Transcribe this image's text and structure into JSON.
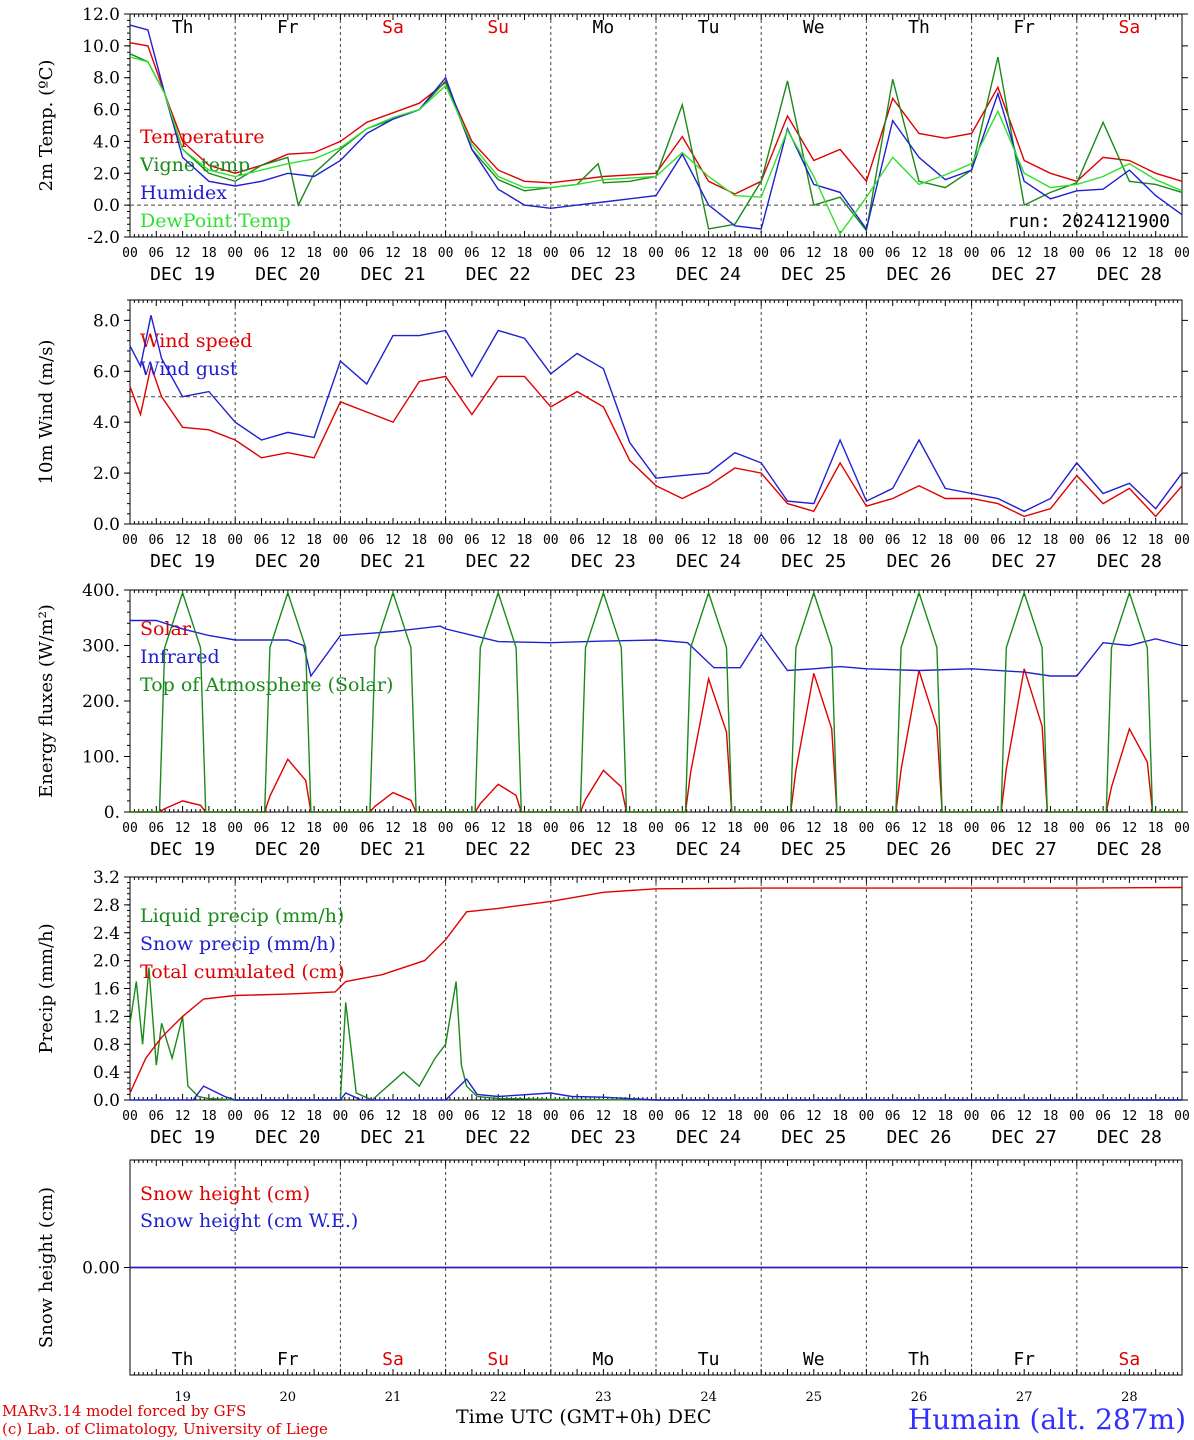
{
  "days": {
    "weekdays": [
      "Th",
      "Fr",
      "Sa",
      "Su",
      "Mo",
      "Tu",
      "We",
      "Th",
      "Fr",
      "Sa"
    ],
    "weekday_colors": [
      "#000000",
      "#000000",
      "#e00000",
      "#e00000",
      "#000000",
      "#000000",
      "#000000",
      "#000000",
      "#000000",
      "#e00000"
    ],
    "dates": [
      "DEC 19",
      "DEC 20",
      "DEC 21",
      "DEC 22",
      "DEC 23",
      "DEC 24",
      "DEC 25",
      "DEC 26",
      "DEC 27",
      "DEC 28"
    ],
    "day_numbers": [
      "19",
      "20",
      "21",
      "22",
      "23",
      "24",
      "25",
      "26",
      "27",
      "28"
    ],
    "hour_ticks": [
      "00",
      "06",
      "12",
      "18"
    ]
  },
  "footer": {
    "model": "MARv3.14 model forced by GFS",
    "credit": "(c) Lab. of Climatology, University of Liege",
    "x_caption": "Time UTC (GMT+0h) DEC",
    "station": "Humain (alt. 287m)"
  },
  "chart_data": [
    {
      "type": "line",
      "ylabel": "2m Temp. (ºC)",
      "ylim": [
        -2,
        12
      ],
      "yticks": [
        "-2.0",
        "0.0",
        "2.0",
        "4.0",
        "6.0",
        "8.0",
        "10.0",
        "12.0"
      ],
      "yvalues": [
        -2,
        0,
        2,
        4,
        6,
        8,
        10,
        12
      ],
      "dashed_y": 0,
      "annotation": "run: 2024121900",
      "x_unit": "days since DEC 19 00h",
      "series": [
        {
          "name": "Temperature",
          "color": "#e00000",
          "x": [
            0,
            0.17,
            0.33,
            0.5,
            0.75,
            1,
            1.25,
            1.5,
            1.75,
            2,
            2.25,
            2.5,
            2.75,
            3,
            3.25,
            3.5,
            3.75,
            4,
            4.25,
            4.5,
            4.75,
            5,
            5.25,
            5.5,
            5.75,
            6,
            6.25,
            6.5,
            6.75,
            7,
            7.25,
            7.5,
            7.75,
            8,
            8.25,
            8.5,
            8.75,
            9,
            9.25,
            9.5,
            9.75,
            10
          ],
          "y": [
            10.2,
            10,
            7,
            4,
            2.5,
            2,
            2.5,
            3.2,
            3.3,
            4,
            5.2,
            5.8,
            6.4,
            7.7,
            4,
            2.2,
            1.5,
            1.4,
            1.6,
            1.8,
            1.9,
            2,
            4.3,
            1.5,
            0.7,
            1.5,
            5.6,
            2.8,
            3.5,
            1.5,
            6.7,
            4.5,
            4.2,
            4.5,
            7.4,
            2.8,
            2,
            1.5,
            3,
            2.8,
            2,
            1.5
          ]
        },
        {
          "name": "Vigne temp",
          "color": "#1a8a1a",
          "x": [
            0,
            0.17,
            0.33,
            0.5,
            0.75,
            1,
            1.25,
            1.5,
            1.6,
            1.75,
            2,
            2.25,
            2.5,
            2.75,
            3,
            3.25,
            3.5,
            3.75,
            4,
            4.25,
            4.45,
            4.5,
            4.75,
            5,
            5.25,
            5.5,
            5.75,
            6,
            6.25,
            6.5,
            6.75,
            7,
            7.25,
            7.5,
            7.75,
            8,
            8.25,
            8.5,
            8.75,
            9,
            9.25,
            9.5,
            9.75,
            10
          ],
          "y": [
            9.5,
            9,
            7,
            3.5,
            2,
            1.5,
            2.5,
            3,
            0,
            2,
            3.5,
            4.8,
            5.4,
            6,
            7.8,
            3.5,
            1.6,
            0.9,
            1.1,
            1.3,
            2.6,
            1.4,
            1.5,
            1.8,
            6.3,
            -1.5,
            -1.2,
            1.5,
            7.8,
            0,
            0.5,
            -1.6,
            7.9,
            1.5,
            1.1,
            2.2,
            9.3,
            0,
            0.8,
            1.4,
            5.2,
            1.5,
            1.3,
            0.8
          ]
        },
        {
          "name": "Humidex",
          "color": "#2020d0",
          "x": [
            0,
            0.17,
            0.33,
            0.5,
            0.75,
            1,
            1.25,
            1.5,
            1.75,
            2,
            2.25,
            2.5,
            2.75,
            3,
            3.25,
            3.5,
            3.75,
            4,
            4.25,
            4.5,
            4.75,
            5,
            5.25,
            5.5,
            5.75,
            6,
            6.25,
            6.5,
            6.75,
            7,
            7.25,
            7.5,
            7.75,
            8,
            8.25,
            8.5,
            8.75,
            9,
            9.25,
            9.5,
            9.75,
            10
          ],
          "y": [
            11.3,
            11,
            7,
            3,
            1.5,
            1.2,
            1.5,
            2,
            1.8,
            2.8,
            4.5,
            5.4,
            6,
            8,
            3.5,
            1,
            0,
            -0.2,
            0,
            0.2,
            0.4,
            0.6,
            3.2,
            0,
            -1.3,
            -1.5,
            4.8,
            1.3,
            0.8,
            -1.5,
            5.3,
            3,
            1.6,
            2.2,
            7,
            1.5,
            0.4,
            0.9,
            1,
            2.2,
            0.6,
            -0.6
          ]
        },
        {
          "name": "DewPoint Temp",
          "color": "#30e030",
          "x": [
            0,
            0.17,
            0.33,
            0.5,
            0.75,
            1,
            1.25,
            1.5,
            1.75,
            2,
            2.25,
            2.5,
            2.75,
            3,
            3.25,
            3.5,
            3.75,
            4,
            4.25,
            4.5,
            4.75,
            5,
            5.25,
            5.5,
            5.75,
            6,
            6.25,
            6.5,
            6.75,
            7,
            7.25,
            7.5,
            7.75,
            8,
            8.25,
            8.5,
            8.75,
            9,
            9.25,
            9.5,
            9.75,
            10
          ],
          "y": [
            9.3,
            9,
            7,
            3.5,
            2.2,
            1.8,
            2.2,
            2.6,
            2.9,
            3.6,
            4.8,
            5.5,
            6,
            7.5,
            3.8,
            1.8,
            1.1,
            1.1,
            1.3,
            1.6,
            1.7,
            1.8,
            3.3,
            1.8,
            0.6,
            0.5,
            4.7,
            1.8,
            -1.8,
            0.5,
            3,
            1.3,
            1.9,
            2.6,
            5.9,
            2,
            1.1,
            1.3,
            1.8,
            2.6,
            1.6,
            0.9
          ]
        }
      ]
    },
    {
      "type": "line",
      "ylabel": "10m Wind (m/s)",
      "ylim": [
        0,
        8.8
      ],
      "yticks": [
        "0.0",
        "2.0",
        "4.0",
        "6.0",
        "8.0"
      ],
      "yvalues": [
        0,
        2,
        4,
        6,
        8
      ],
      "dashed_y": 5,
      "x_unit": "days since DEC 19 00h",
      "series": [
        {
          "name": "Wind speed",
          "color": "#e00000",
          "x": [
            0,
            0.1,
            0.2,
            0.3,
            0.5,
            0.75,
            1,
            1.25,
            1.5,
            1.75,
            2,
            2.25,
            2.5,
            2.75,
            3,
            3.25,
            3.5,
            3.75,
            4,
            4.25,
            4.5,
            4.75,
            5,
            5.25,
            5.5,
            5.75,
            6,
            6.25,
            6.5,
            6.75,
            7,
            7.25,
            7.5,
            7.75,
            8,
            8.25,
            8.5,
            8.75,
            9,
            9.25,
            9.5,
            9.75,
            10
          ],
          "y": [
            5.4,
            4.3,
            6.2,
            5,
            3.8,
            3.7,
            3.3,
            2.6,
            2.8,
            2.6,
            4.8,
            4.4,
            4,
            5.6,
            5.8,
            4.3,
            5.8,
            5.8,
            4.6,
            5.2,
            4.6,
            2.5,
            1.5,
            1,
            1.5,
            2.2,
            2,
            0.8,
            0.5,
            2.4,
            0.7,
            1,
            1.5,
            1,
            1,
            0.8,
            0.3,
            0.6,
            1.9,
            0.8,
            1.4,
            0.3,
            1.5
          ]
        },
        {
          "name": "Wind gust",
          "color": "#2020d0",
          "x": [
            0,
            0.1,
            0.2,
            0.3,
            0.5,
            0.75,
            1,
            1.25,
            1.5,
            1.75,
            2,
            2.25,
            2.5,
            2.75,
            3,
            3.25,
            3.5,
            3.75,
            4,
            4.25,
            4.5,
            4.75,
            5,
            5.25,
            5.5,
            5.75,
            6,
            6.25,
            6.5,
            6.75,
            7,
            7.25,
            7.5,
            7.75,
            8,
            8.25,
            8.5,
            8.75,
            9,
            9.25,
            9.5,
            9.75,
            10
          ],
          "y": [
            7,
            6.2,
            8.2,
            6.5,
            5,
            5.2,
            4,
            3.3,
            3.6,
            3.4,
            6.4,
            5.5,
            7.4,
            7.4,
            7.6,
            5.8,
            7.6,
            7.3,
            5.9,
            6.7,
            6.1,
            3.2,
            1.8,
            1.9,
            2,
            2.8,
            2.4,
            0.9,
            0.8,
            3.3,
            0.9,
            1.4,
            3.3,
            1.4,
            1.2,
            1,
            0.5,
            1,
            2.4,
            1.2,
            1.6,
            0.6,
            2
          ]
        }
      ]
    },
    {
      "type": "line",
      "ylabel": "Energy fluxes (W/m²)",
      "ylim": [
        0,
        400
      ],
      "yticks": [
        "0.",
        "100.",
        "200.",
        "300.",
        "400."
      ],
      "yvalues": [
        0,
        100,
        200,
        300,
        400
      ],
      "x_unit": "days since DEC 19 00h",
      "series": [
        {
          "name": "Solar",
          "color": "#e00000",
          "peaks": [
            20,
            95,
            35,
            50,
            75,
            240,
            250,
            255,
            258,
            150
          ]
        },
        {
          "name": "Infrared",
          "color": "#2020d0",
          "x": [
            0,
            0.25,
            0.5,
            0.75,
            1,
            1.25,
            1.5,
            1.65,
            1.72,
            2,
            2.5,
            2.95,
            3,
            3.5,
            4,
            4.5,
            5,
            5.3,
            5.55,
            5.8,
            6,
            6.25,
            6.5,
            6.75,
            7,
            7.5,
            8,
            8.5,
            8.75,
            9,
            9.25,
            9.5,
            9.75,
            10
          ],
          "y": [
            345,
            345,
            330,
            318,
            310,
            310,
            310,
            300,
            245,
            318,
            325,
            335,
            330,
            307,
            305,
            308,
            310,
            305,
            260,
            260,
            320,
            255,
            258,
            262,
            258,
            255,
            258,
            252,
            245,
            245,
            305,
            300,
            312,
            300
          ]
        },
        {
          "name": "Top of Atmosphere (Solar)",
          "color": "#1a8a1a",
          "peak": 395
        }
      ]
    },
    {
      "type": "line",
      "ylabel": "Precip (mm/h)",
      "ylim": [
        0,
        3.2
      ],
      "yticks": [
        "0.0",
        "0.4",
        "0.8",
        "1.2",
        "1.6",
        "2.0",
        "2.4",
        "2.8",
        "3.2"
      ],
      "yvalues": [
        0,
        0.4,
        0.8,
        1.2,
        1.6,
        2,
        2.4,
        2.8,
        3.2
      ],
      "x_unit": "days since DEC 19 00h",
      "series": [
        {
          "name": "Liquid precip (mm/h)",
          "color": "#1a8a1a",
          "x": [
            0,
            0.06,
            0.12,
            0.18,
            0.25,
            0.3,
            0.4,
            0.5,
            0.55,
            0.65,
            0.75,
            1,
            1.5,
            2,
            2.05,
            2.15,
            2.3,
            2.6,
            2.75,
            2.9,
            3,
            3.1,
            3.15,
            3.2,
            3.3,
            3.5,
            4,
            5,
            10
          ],
          "y": [
            1.1,
            1.7,
            0.8,
            1.9,
            0.5,
            1.1,
            0.6,
            1.2,
            0.2,
            0.05,
            0.02,
            0,
            0,
            0,
            1.4,
            0.1,
            0,
            0.4,
            0.2,
            0.6,
            0.8,
            1.7,
            0.5,
            0.2,
            0.05,
            0.02,
            0.01,
            0,
            0
          ]
        },
        {
          "name": "Snow precip (mm/h)",
          "color": "#2020d0",
          "x": [
            0,
            0.6,
            0.7,
            0.9,
            1,
            1.5,
            2,
            2.05,
            2.2,
            3,
            3.2,
            3.3,
            3.5,
            4,
            4.2,
            4.5,
            5,
            10
          ],
          "y": [
            0,
            0,
            0.2,
            0.05,
            0,
            0,
            0,
            0.1,
            0,
            0,
            0.3,
            0.08,
            0.05,
            0.1,
            0.05,
            0.04,
            0,
            0
          ]
        },
        {
          "name": "Total cumulated (cm)",
          "color": "#e00000",
          "x": [
            0,
            0.15,
            0.3,
            0.5,
            0.7,
            1,
            1.5,
            1.95,
            2.05,
            2.4,
            2.8,
            3,
            3.2,
            3.5,
            4,
            4.5,
            5,
            6,
            7,
            8,
            9,
            10
          ],
          "y": [
            0.1,
            0.6,
            0.9,
            1.2,
            1.45,
            1.5,
            1.52,
            1.55,
            1.7,
            1.8,
            2,
            2.3,
            2.7,
            2.75,
            2.85,
            2.98,
            3.03,
            3.04,
            3.04,
            3.04,
            3.04,
            3.05
          ]
        }
      ]
    },
    {
      "type": "line",
      "ylabel": "Snow height (cm)",
      "yticks": [
        "0.00"
      ],
      "yvalues": [
        0
      ],
      "ylim": [
        -1,
        1
      ],
      "x_unit": "days since DEC 19 00h",
      "series": [
        {
          "name": "Snow height (cm)",
          "color": "#e00000",
          "x": [
            0,
            10
          ],
          "y": [
            0,
            0
          ]
        },
        {
          "name": "Snow height (cm W.E.)",
          "color": "#2020d0",
          "x": [
            0,
            10
          ],
          "y": [
            0,
            0
          ]
        }
      ]
    }
  ]
}
